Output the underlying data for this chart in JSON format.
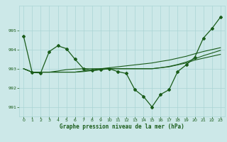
{
  "background_color": "#cce8e8",
  "grid_color": "#aad4d4",
  "line_color": "#1a5c1a",
  "text_color": "#1a5c1a",
  "xlabel": "Graphe pression niveau de la mer (hPa)",
  "ylim": [
    990.5,
    996.3
  ],
  "yticks": [
    991,
    992,
    993,
    994,
    995
  ],
  "xticks": [
    0,
    1,
    2,
    3,
    4,
    5,
    6,
    7,
    8,
    9,
    10,
    11,
    12,
    13,
    14,
    15,
    16,
    17,
    18,
    19,
    20,
    21,
    22,
    23
  ],
  "series1": [
    994.7,
    992.8,
    992.78,
    993.9,
    994.2,
    994.05,
    993.5,
    993.0,
    992.9,
    992.95,
    993.0,
    992.85,
    992.75,
    991.9,
    991.55,
    991.0,
    991.65,
    991.9,
    992.85,
    993.2,
    993.6,
    994.6,
    995.1,
    995.7
  ],
  "series2": [
    993.0,
    992.82,
    992.82,
    992.82,
    992.82,
    992.82,
    992.82,
    992.85,
    992.9,
    992.95,
    993.0,
    993.0,
    993.0,
    993.0,
    993.0,
    993.0,
    993.05,
    993.1,
    993.2,
    993.3,
    993.45,
    993.55,
    993.65,
    993.75
  ],
  "series3": [
    993.0,
    992.82,
    992.82,
    992.82,
    992.82,
    992.82,
    992.82,
    992.88,
    992.95,
    993.0,
    993.05,
    993.1,
    993.15,
    993.2,
    993.25,
    993.3,
    993.38,
    993.45,
    993.55,
    993.65,
    993.78,
    993.9,
    994.0,
    994.1
  ],
  "series4": [
    993.0,
    992.82,
    992.82,
    992.82,
    992.88,
    992.95,
    992.98,
    993.0,
    993.0,
    993.0,
    993.0,
    993.0,
    993.0,
    993.0,
    993.0,
    993.0,
    993.05,
    993.12,
    993.22,
    993.35,
    993.52,
    993.68,
    993.82,
    993.96
  ]
}
